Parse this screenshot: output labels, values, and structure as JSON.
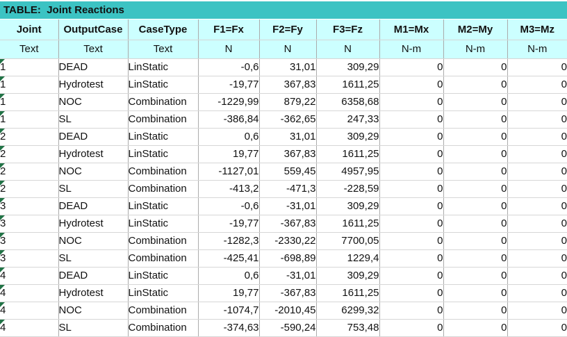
{
  "window": {
    "title": "TABLE:  Joint Reactions"
  },
  "colors": {
    "title_bar_bg": "#3CC3C3",
    "header_bg": "#CCFFFF",
    "error_indicator_green": "#217346"
  },
  "table": {
    "columns": [
      {
        "label": "Joint",
        "unit": "Text",
        "align": "left"
      },
      {
        "label": "OutputCase",
        "unit": "Text",
        "align": "left"
      },
      {
        "label": "CaseType",
        "unit": "Text",
        "align": "left"
      },
      {
        "label": "F1=Fx",
        "unit": "N",
        "align": "right"
      },
      {
        "label": "F2=Fy",
        "unit": "N",
        "align": "right"
      },
      {
        "label": "F3=Fz",
        "unit": "N",
        "align": "right"
      },
      {
        "label": "M1=Mx",
        "unit": "N-m",
        "align": "right"
      },
      {
        "label": "M2=My",
        "unit": "N-m",
        "align": "right"
      },
      {
        "label": "M3=Mz",
        "unit": "N-m",
        "align": "right"
      }
    ],
    "rows": [
      [
        "1",
        "DEAD",
        "LinStatic",
        "-0,6",
        "31,01",
        "309,29",
        "0",
        "0",
        "0"
      ],
      [
        "1",
        "Hydrotest",
        "LinStatic",
        "-19,77",
        "367,83",
        "1611,25",
        "0",
        "0",
        "0"
      ],
      [
        "1",
        "NOC",
        "Combination",
        "-1229,99",
        "879,22",
        "6358,68",
        "0",
        "0",
        "0"
      ],
      [
        "1",
        "SL",
        "Combination",
        "-386,84",
        "-362,65",
        "247,33",
        "0",
        "0",
        "0"
      ],
      [
        "2",
        "DEAD",
        "LinStatic",
        "0,6",
        "31,01",
        "309,29",
        "0",
        "0",
        "0"
      ],
      [
        "2",
        "Hydrotest",
        "LinStatic",
        "19,77",
        "367,83",
        "1611,25",
        "0",
        "0",
        "0"
      ],
      [
        "2",
        "NOC",
        "Combination",
        "-1127,01",
        "559,45",
        "4957,95",
        "0",
        "0",
        "0"
      ],
      [
        "2",
        "SL",
        "Combination",
        "-413,2",
        "-471,3",
        "-228,59",
        "0",
        "0",
        "0"
      ],
      [
        "3",
        "DEAD",
        "LinStatic",
        "-0,6",
        "-31,01",
        "309,29",
        "0",
        "0",
        "0"
      ],
      [
        "3",
        "Hydrotest",
        "LinStatic",
        "-19,77",
        "-367,83",
        "1611,25",
        "0",
        "0",
        "0"
      ],
      [
        "3",
        "NOC",
        "Combination",
        "-1282,3",
        "-2330,22",
        "7700,05",
        "0",
        "0",
        "0"
      ],
      [
        "3",
        "SL",
        "Combination",
        "-425,41",
        "-698,89",
        "1229,4",
        "0",
        "0",
        "0"
      ],
      [
        "4",
        "DEAD",
        "LinStatic",
        "0,6",
        "-31,01",
        "309,29",
        "0",
        "0",
        "0"
      ],
      [
        "4",
        "Hydrotest",
        "LinStatic",
        "19,77",
        "-367,83",
        "1611,25",
        "0",
        "0",
        "0"
      ],
      [
        "4",
        "NOC",
        "Combination",
        "-1074,7",
        "-2010,45",
        "6299,32",
        "0",
        "0",
        "0"
      ],
      [
        "4",
        "SL",
        "Combination",
        "-374,63",
        "-590,24",
        "753,48",
        "0",
        "0",
        "0"
      ]
    ]
  }
}
